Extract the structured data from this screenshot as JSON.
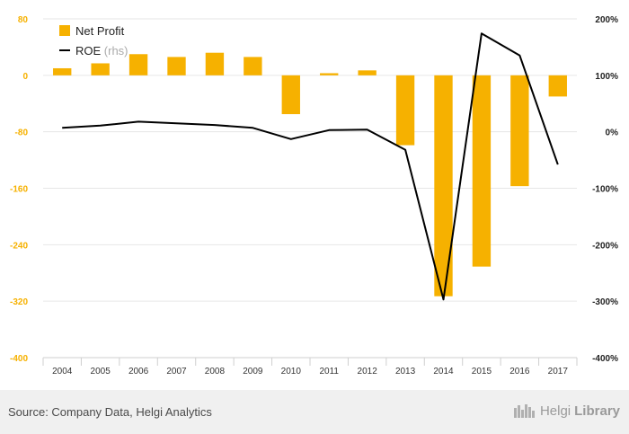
{
  "chart_data": {
    "type": "bar+line",
    "categories": [
      "2004",
      "2005",
      "2006",
      "2007",
      "2008",
      "2009",
      "2010",
      "2011",
      "2012",
      "2013",
      "2014",
      "2015",
      "2016",
      "2017"
    ],
    "series": [
      {
        "name": "Net Profit",
        "type": "bar",
        "axis": "left",
        "color": "#f6b100",
        "values": [
          10,
          17,
          30,
          26,
          32,
          26,
          -55,
          3,
          7,
          -99,
          -313,
          -271,
          -157,
          -30
        ]
      },
      {
        "name": "ROE",
        "type": "line",
        "axis": "right",
        "color": "#000000",
        "values": [
          7,
          11,
          18,
          15,
          12,
          7,
          -13,
          3,
          4,
          -32,
          -297,
          174,
          135,
          -58
        ]
      }
    ],
    "y_left": {
      "ticks": [
        "80",
        "0",
        "-80",
        "-160",
        "-240",
        "-320",
        "-400"
      ],
      "range": [
        -400,
        80
      ],
      "color": "#f6b100"
    },
    "y_right": {
      "ticks": [
        "200%",
        "100%",
        "0%",
        "-100%",
        "-200%",
        "-300%",
        "-400%"
      ],
      "range": [
        -400,
        200
      ]
    },
    "legend": {
      "placement": "top-left",
      "items": [
        {
          "label": "Net Profit",
          "suffix": ""
        },
        {
          "label": "ROE",
          "suffix": "(rhs)"
        }
      ]
    },
    "grid": true
  },
  "footer": {
    "source": "Source: Company Data, Helgi Analytics",
    "brand_part1": "Helgi",
    "brand_part2": "Library"
  }
}
